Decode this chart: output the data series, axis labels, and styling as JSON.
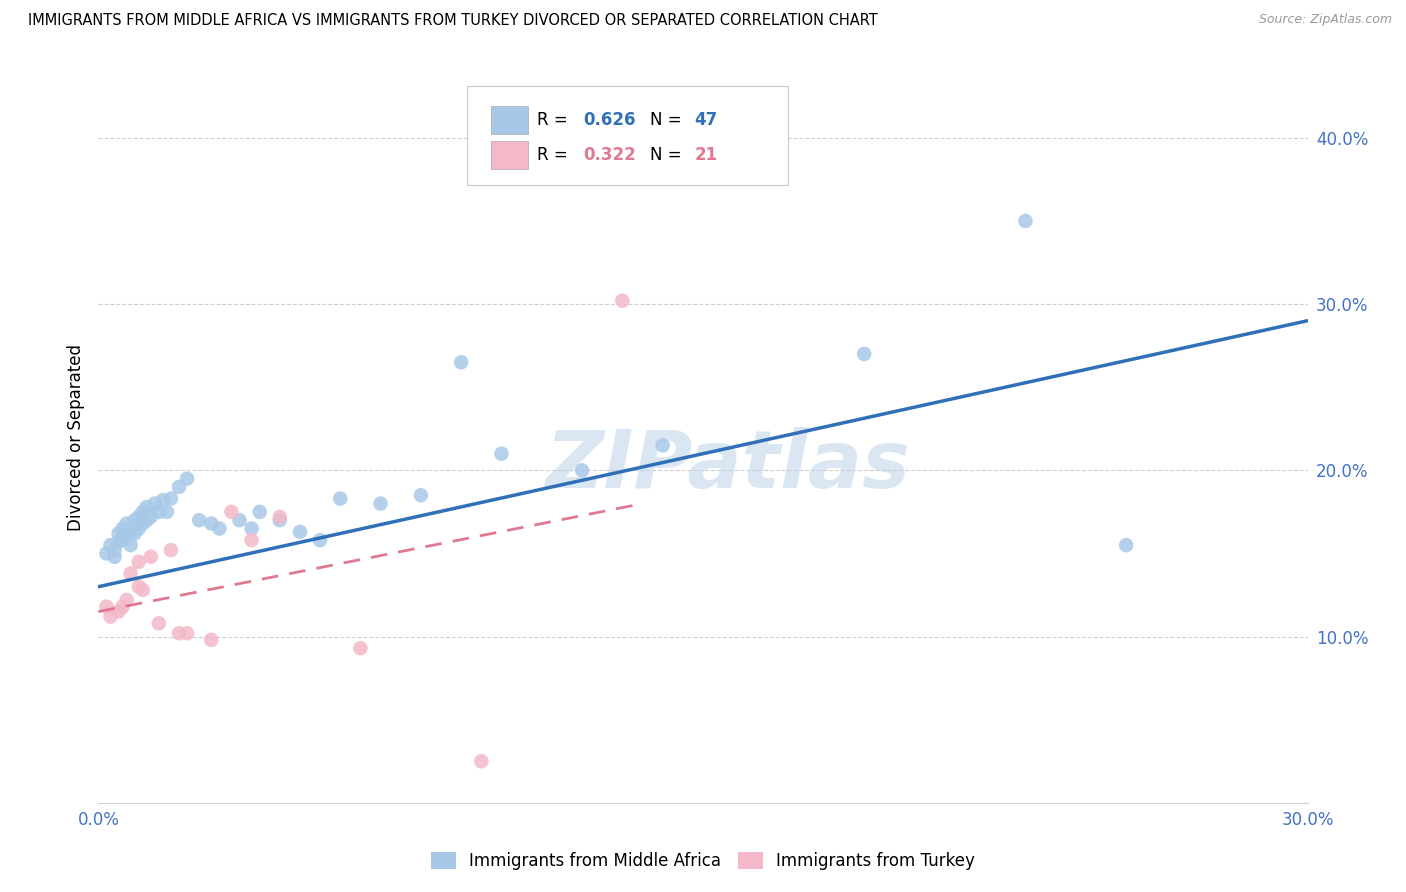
{
  "title": "IMMIGRANTS FROM MIDDLE AFRICA VS IMMIGRANTS FROM TURKEY DIVORCED OR SEPARATED CORRELATION CHART",
  "source": "Source: ZipAtlas.com",
  "ylabel": "Divorced or Separated",
  "xlim": [
    0.0,
    0.3
  ],
  "ylim": [
    0.0,
    0.44
  ],
  "yticks": [
    0.1,
    0.2,
    0.3,
    0.4
  ],
  "ytick_labels": [
    "10.0%",
    "20.0%",
    "30.0%",
    "40.0%"
  ],
  "xticks": [
    0.0,
    0.05,
    0.1,
    0.15,
    0.2,
    0.25,
    0.3
  ],
  "xtick_labels": [
    "0.0%",
    "",
    "",
    "",
    "",
    "",
    "30.0%"
  ],
  "blue_color": "#a8c8e8",
  "pink_color": "#f4b8c8",
  "blue_line_color": "#3070b8",
  "pink_line_color": "#e07890",
  "watermark": "ZIPatlas",
  "blue_scatter_x": [
    0.002,
    0.003,
    0.004,
    0.004,
    0.005,
    0.005,
    0.006,
    0.006,
    0.007,
    0.007,
    0.008,
    0.008,
    0.009,
    0.009,
    0.01,
    0.01,
    0.011,
    0.011,
    0.012,
    0.012,
    0.013,
    0.014,
    0.015,
    0.016,
    0.017,
    0.018,
    0.02,
    0.022,
    0.025,
    0.028,
    0.03,
    0.035,
    0.038,
    0.04,
    0.045,
    0.05,
    0.055,
    0.06,
    0.07,
    0.08,
    0.09,
    0.1,
    0.12,
    0.14,
    0.19,
    0.23,
    0.255
  ],
  "blue_scatter_y": [
    0.15,
    0.155,
    0.148,
    0.152,
    0.157,
    0.162,
    0.158,
    0.165,
    0.16,
    0.168,
    0.155,
    0.163,
    0.162,
    0.17,
    0.165,
    0.172,
    0.168,
    0.175,
    0.17,
    0.178,
    0.172,
    0.18,
    0.175,
    0.182,
    0.175,
    0.183,
    0.19,
    0.195,
    0.17,
    0.168,
    0.165,
    0.17,
    0.165,
    0.175,
    0.17,
    0.163,
    0.158,
    0.183,
    0.18,
    0.185,
    0.265,
    0.21,
    0.2,
    0.215,
    0.27,
    0.35,
    0.155
  ],
  "pink_scatter_x": [
    0.002,
    0.003,
    0.005,
    0.006,
    0.007,
    0.008,
    0.01,
    0.01,
    0.011,
    0.013,
    0.015,
    0.018,
    0.02,
    0.022,
    0.028,
    0.033,
    0.038,
    0.045,
    0.065,
    0.095,
    0.13
  ],
  "pink_scatter_y": [
    0.118,
    0.112,
    0.115,
    0.118,
    0.122,
    0.138,
    0.13,
    0.145,
    0.128,
    0.148,
    0.108,
    0.152,
    0.102,
    0.102,
    0.098,
    0.175,
    0.158,
    0.172,
    0.093,
    0.025,
    0.302
  ],
  "blue_trend_x": [
    0.0,
    0.3
  ],
  "blue_trend_y": [
    0.13,
    0.29
  ],
  "pink_trend_x": [
    0.0,
    0.135
  ],
  "pink_trend_y": [
    0.115,
    0.18
  ],
  "legend_label_blue": "Immigrants from Middle Africa",
  "legend_label_pink": "Immigrants from Turkey",
  "tick_color": "#4472c4",
  "title_fontsize": 11
}
